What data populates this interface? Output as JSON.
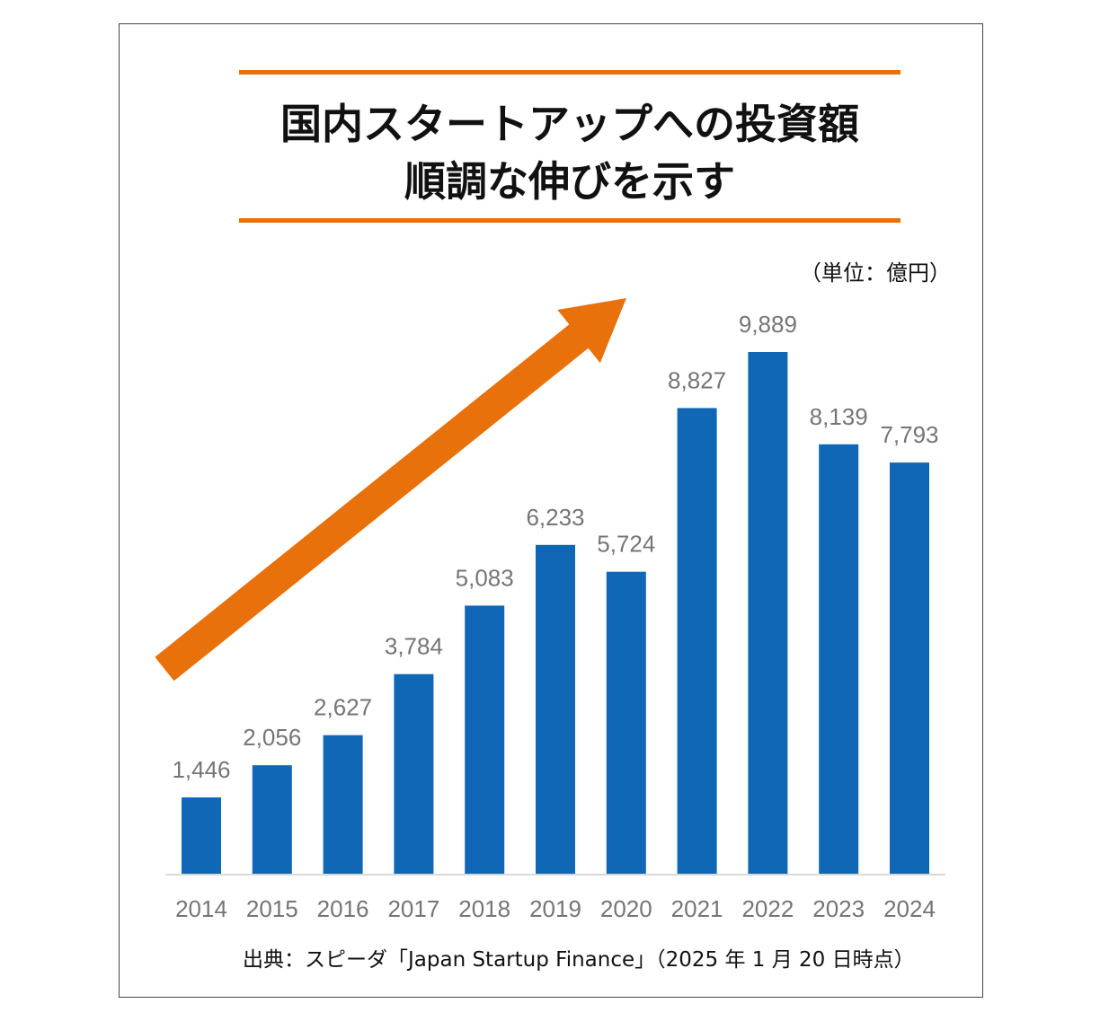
{
  "title_line1": "国内スタートアップへの投資額",
  "title_line2": "順調な伸びを示す",
  "unit_label": "（単位：億円）",
  "source": "出典：スピーダ「Japan Startup Finance」（2025 年 1 月 20 日時点）",
  "colors": {
    "bar": "#0f67b5",
    "accent": "#e8710b",
    "label_text": "#757575",
    "axis": "#d9d9d9"
  },
  "chart_data": {
    "type": "bar",
    "categories": [
      "2014",
      "2015",
      "2016",
      "2017",
      "2018",
      "2019",
      "2020",
      "2021",
      "2022",
      "2023",
      "2024"
    ],
    "values": [
      1446,
      2056,
      2627,
      3784,
      5083,
      6233,
      5724,
      8827,
      9889,
      8139,
      7793
    ],
    "value_labels": [
      "1,446",
      "2,056",
      "2,627",
      "3,784",
      "5,083",
      "6,233",
      "5,724",
      "8,827",
      "9,889",
      "8,139",
      "7,793"
    ],
    "ylim": [
      0,
      10000
    ],
    "grid": false,
    "legend": false,
    "annotation": "upward-trend-arrow"
  }
}
